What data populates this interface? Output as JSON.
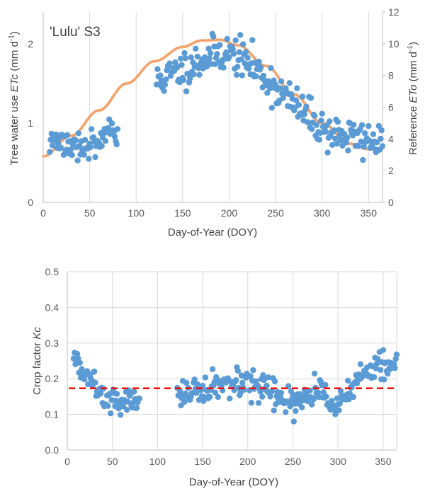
{
  "chart_data": [
    {
      "type": "scatter",
      "annotation": "'Lulu' S3",
      "xlabel": "Day-of-Year (DOY)",
      "ylabel_left": {
        "pre": "Tree water use ",
        "italic": "ETc",
        "post": " (mm d",
        "sup": "-1",
        "end": ")"
      },
      "ylabel_right": {
        "pre": "Reference ",
        "italic": "ETo",
        "post": " (mm d",
        "sup": "-1",
        "end": ")"
      },
      "xlim": [
        0,
        365
      ],
      "xticks": [
        0,
        50,
        100,
        150,
        200,
        250,
        300,
        350
      ],
      "ylim_left": [
        0,
        2.4
      ],
      "yticks_left": [
        0,
        1,
        2
      ],
      "ylim_right": [
        0,
        12
      ],
      "yticks_right": [
        0,
        2,
        4,
        6,
        8,
        10,
        12
      ],
      "grid": "vertical",
      "colors": {
        "points": "#5b9bd5",
        "curve": "#f4b183",
        "curve_core": "#ed7d31",
        "grid": "#d9d9d9",
        "axis": "#bfbfbf"
      },
      "reference_curve": {
        "axis": "right",
        "x": [
          0,
          30,
          60,
          90,
          120,
          150,
          170,
          190,
          210,
          240,
          270,
          300,
          330,
          350,
          365
        ],
        "y": [
          2.9,
          4.2,
          5.8,
          7.5,
          8.9,
          9.8,
          10.2,
          10.25,
          9.9,
          8.6,
          6.8,
          5.0,
          3.7,
          3.35,
          3.4
        ]
      },
      "segments": [
        {
          "start": 7,
          "end": 80,
          "x": [
            7,
            20,
            35,
            50,
            65,
            80
          ],
          "y": [
            0.78,
            0.8,
            0.72,
            0.7,
            0.8,
            0.88
          ],
          "noise": 0.09,
          "seed": 3
        },
        {
          "start": 122,
          "end": 365,
          "x": [
            122,
            150,
            175,
            195,
            210,
            225,
            245,
            265,
            285,
            305,
            330,
            365
          ],
          "y": [
            1.52,
            1.68,
            1.82,
            1.9,
            1.84,
            1.72,
            1.5,
            1.28,
            1.08,
            0.9,
            0.82,
            0.78
          ],
          "noise": 0.12,
          "seed": 11
        }
      ]
    },
    {
      "type": "scatter",
      "xlabel": "Day-of-Year (DOY)",
      "ylabel": {
        "pre": "Crop factor ",
        "italic": "Kc",
        "post": "",
        "sup": "",
        "end": ""
      },
      "xlim": [
        0,
        365
      ],
      "xticks": [
        0,
        50,
        100,
        150,
        200,
        250,
        300,
        350
      ],
      "ylim": [
        0,
        0.5
      ],
      "yticks": [
        0.0,
        0.1,
        0.2,
        0.3,
        0.4,
        0.5
      ],
      "ytick_labels": [
        "0.0",
        "0.1",
        "0.2",
        "0.3",
        "0.4",
        "0.5"
      ],
      "grid": "both",
      "mean_line": {
        "y": 0.173,
        "color": "#ff0000",
        "style": "dashed"
      },
      "colors": {
        "points": "#5b9bd5",
        "grid": "#d9d9d9",
        "axis": "#bfbfbf"
      },
      "segments": [
        {
          "start": 7,
          "end": 80,
          "x": [
            7,
            15,
            25,
            35,
            45,
            55,
            65,
            80
          ],
          "y": [
            0.26,
            0.22,
            0.21,
            0.18,
            0.15,
            0.13,
            0.14,
            0.13
          ],
          "noise": 0.018,
          "seed": 5
        },
        {
          "start": 122,
          "end": 365,
          "x": [
            122,
            150,
            180,
            200,
            220,
            240,
            260,
            280,
            295,
            310,
            330,
            345,
            365
          ],
          "y": [
            0.16,
            0.17,
            0.18,
            0.18,
            0.17,
            0.13,
            0.14,
            0.17,
            0.12,
            0.17,
            0.2,
            0.24,
            0.23
          ],
          "noise": 0.02,
          "seed": 17
        }
      ]
    }
  ]
}
